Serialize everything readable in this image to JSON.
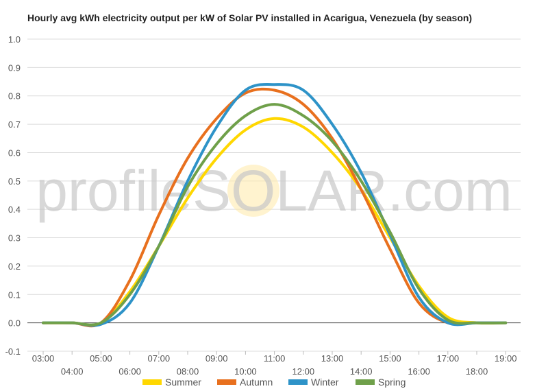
{
  "chart_data": {
    "type": "line",
    "title": "Hourly avg kWh electricity output per kW of Solar PV installed in Acarigua, Venezuela (by season)",
    "xlabel": "",
    "ylabel": "",
    "ylim": [
      -0.1,
      1.0
    ],
    "yticks": [
      "-0.1",
      "0.0",
      "0.1",
      "0.2",
      "0.3",
      "0.4",
      "0.5",
      "0.6",
      "0.7",
      "0.8",
      "0.9",
      "1.0"
    ],
    "x": [
      "03:00",
      "04:00",
      "05:00",
      "06:00",
      "07:00",
      "08:00",
      "09:00",
      "10:00",
      "11:00",
      "12:00",
      "13:00",
      "14:00",
      "15:00",
      "16:00",
      "17:00",
      "18:00",
      "19:00"
    ],
    "grid": true,
    "legend_position": "bottom",
    "series": [
      {
        "name": "Summer",
        "color": "#FFD700",
        "values": [
          0,
          0,
          0,
          0.11,
          0.27,
          0.44,
          0.58,
          0.68,
          0.72,
          0.69,
          0.6,
          0.47,
          0.3,
          0.13,
          0.02,
          0,
          0
        ]
      },
      {
        "name": "Autumn",
        "color": "#E8701E",
        "values": [
          0,
          0,
          0,
          0.15,
          0.38,
          0.58,
          0.72,
          0.81,
          0.82,
          0.77,
          0.65,
          0.47,
          0.26,
          0.07,
          0,
          0,
          0
        ]
      },
      {
        "name": "Winter",
        "color": "#2E93C8",
        "values": [
          0,
          0,
          -0.005,
          0.07,
          0.27,
          0.5,
          0.69,
          0.82,
          0.84,
          0.82,
          0.7,
          0.53,
          0.31,
          0.09,
          0,
          0,
          0
        ]
      },
      {
        "name": "Spring",
        "color": "#6FA04A",
        "values": [
          0,
          0,
          0,
          0.1,
          0.27,
          0.48,
          0.63,
          0.73,
          0.77,
          0.73,
          0.64,
          0.5,
          0.32,
          0.12,
          0.01,
          0,
          0
        ]
      }
    ],
    "watermark": "profileSOLAR.com"
  }
}
